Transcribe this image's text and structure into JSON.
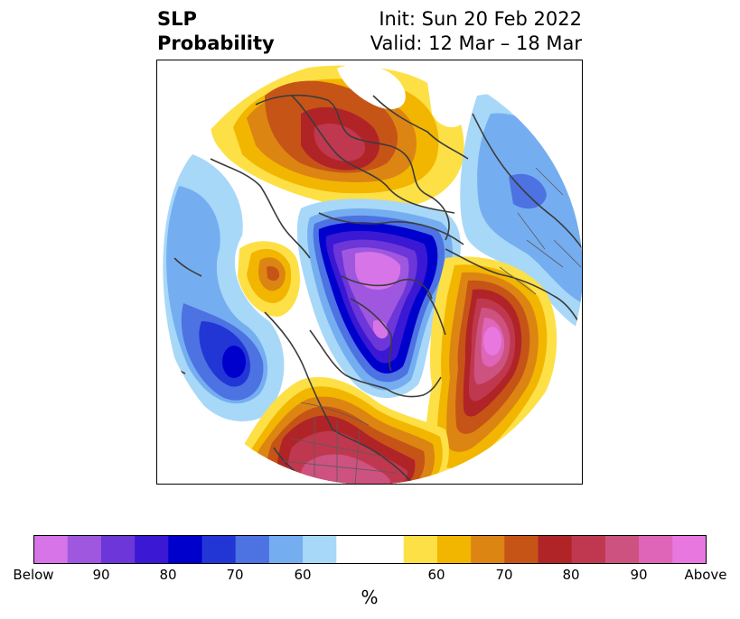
{
  "header": {
    "title_line1": "SLP",
    "title_line2": "Probability",
    "init_text": "Init: Sun 20 Feb 2022",
    "valid_text": "Valid: 12 Mar – 18 Mar"
  },
  "colorbar": {
    "unit_label": "%",
    "colors": [
      "#d674e8",
      "#9f57e0",
      "#6c36d8",
      "#3a18d4",
      "#0000cc",
      "#2236d6",
      "#4d72e2",
      "#75aef0",
      "#a8d8f8",
      "#ffffff",
      "#ffffff",
      "#fde046",
      "#f2b600",
      "#dc8513",
      "#c65417",
      "#b02428",
      "#c0384f",
      "#cd527f",
      "#de65b8",
      "#e878e0"
    ],
    "tick_labels": [
      "Below",
      "90",
      "80",
      "70",
      "60",
      "60",
      "70",
      "80",
      "90",
      "Above"
    ]
  },
  "map": {
    "projection": "polar stereographic (north pole)",
    "region": "Northern Hemisphere",
    "features": [
      "coastlines",
      "country borders",
      "state borders"
    ]
  }
}
